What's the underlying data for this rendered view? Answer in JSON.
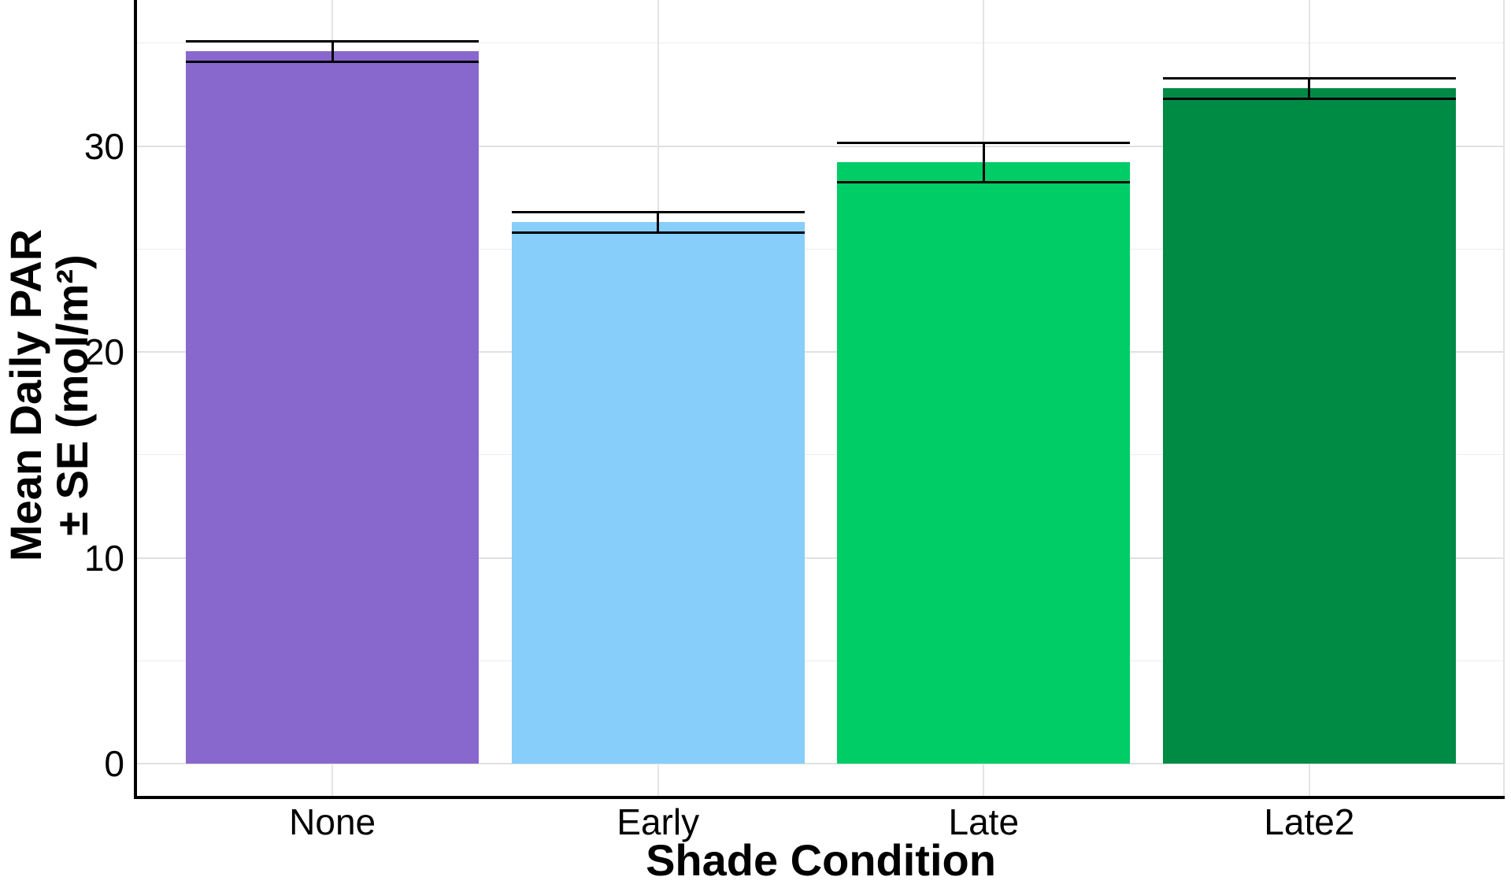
{
  "figure": {
    "background": "#ffffff",
    "axis_color": "#000000",
    "grid_major_color": "#e0e0e0",
    "grid_minor_color": "#ededed"
  },
  "chart_data": {
    "type": "bar",
    "categories": [
      "None",
      "Early",
      "Late",
      "Late2"
    ],
    "series": [
      {
        "name": "Mean Daily PAR",
        "values": [
          34.6,
          26.3,
          29.2,
          32.8
        ],
        "se": [
          0.5,
          0.5,
          0.95,
          0.5
        ]
      }
    ],
    "bar_colors": [
      "#8968CD",
      "#87CEFA",
      "#00CD66",
      "#008B45"
    ],
    "title": "",
    "xlabel": "Shade Condition",
    "ylabel_line1": "Mean Daily PAR",
    "ylabel_line2": "± SE (mol/m²)",
    "ylim": [
      0,
      37
    ],
    "yticks": [
      0,
      10,
      20,
      30
    ],
    "yticks_minor": [
      5,
      15,
      25,
      35
    ],
    "grid": "horizontal major and minor gridlines; vertical gridline at each category center",
    "legend": "none",
    "error_bars": "mean ± SE, black whiskers, cap width equals bar width"
  }
}
